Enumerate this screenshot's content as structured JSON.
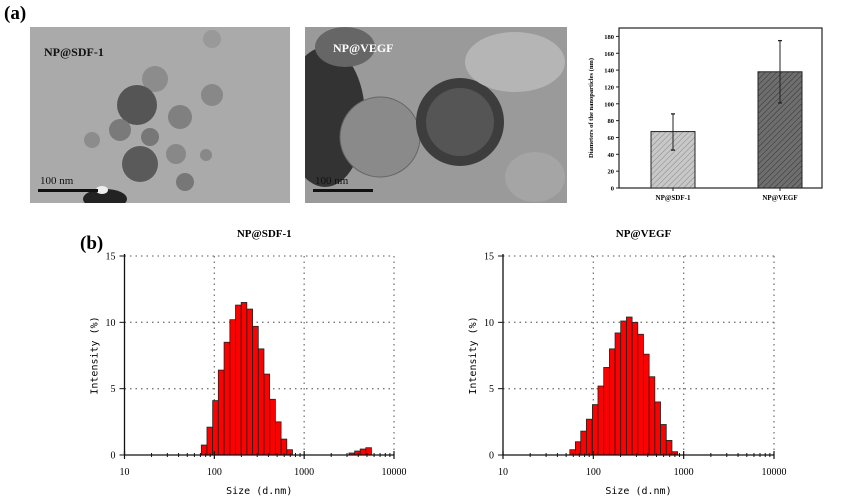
{
  "panel_a_label": "(a)",
  "panel_b_label": "(b)",
  "tem_images": [
    {
      "label": "NP@SDF-1",
      "scale_label": "100 nm"
    },
    {
      "label": "NP@VEGF",
      "scale_label": "100 nm"
    }
  ],
  "chart_data": [
    {
      "type": "bar",
      "title": "",
      "xlabel": "",
      "ylabel": "Diameters of the nanoparticles (nm)",
      "categories": [
        "NP@SDF-1",
        "NP@VEGF"
      ],
      "values": [
        67,
        138
      ],
      "error_low": [
        45,
        101
      ],
      "error_high": [
        88,
        175
      ],
      "ylim": [
        0,
        190
      ],
      "yticks": [
        0,
        20,
        40,
        60,
        80,
        100,
        120,
        140,
        160,
        180
      ],
      "colors": [
        "#c8c8c8",
        "#6e6e6e"
      ],
      "pattern": "diagonal-hatch",
      "grid": false
    },
    {
      "type": "bar",
      "title": "NP@SDF-1",
      "xlabel": "Size (d.nm)",
      "ylabel": "Intensity (%)",
      "x_scale": "log",
      "xlim": [
        10,
        10000
      ],
      "xticks": [
        "10",
        "100",
        "1000",
        "10000"
      ],
      "ylim": [
        0,
        15
      ],
      "yticks": [
        "0",
        "5",
        "10",
        "15"
      ],
      "grid": true,
      "color": "#ff0000",
      "x": [
        77,
        89,
        103,
        119,
        138,
        160,
        185,
        214,
        248,
        287,
        332,
        384,
        445,
        515,
        596,
        690,
        3390,
        3920,
        4520,
        5220
      ],
      "values": [
        0.75,
        2.1,
        4.1,
        6.4,
        8.5,
        10.2,
        11.3,
        11.5,
        11.0,
        9.7,
        8.0,
        6.1,
        4.2,
        2.5,
        1.2,
        0.4,
        0.15,
        0.3,
        0.45,
        0.55
      ]
    },
    {
      "type": "bar",
      "title": "NP@VEGF",
      "xlabel": "Size (d.nm)",
      "ylabel": "Intensity (%)",
      "x_scale": "log",
      "xlim": [
        10,
        10000
      ],
      "xticks": [
        "10",
        "100",
        "1000",
        "10000"
      ],
      "ylim": [
        0,
        15
      ],
      "yticks": [
        "0",
        "5",
        "10",
        "15"
      ],
      "grid": true,
      "color": "#ff0000",
      "x": [
        59,
        68,
        78,
        90,
        105,
        121,
        140,
        162,
        187,
        216,
        250,
        289,
        334,
        386,
        446,
        516,
        597,
        690,
        797
      ],
      "values": [
        0.4,
        1.0,
        1.8,
        2.7,
        3.8,
        5.2,
        6.6,
        8.0,
        9.2,
        10.1,
        10.4,
        10.0,
        9.1,
        7.6,
        5.9,
        4.0,
        2.3,
        1.1,
        0.25
      ]
    }
  ]
}
